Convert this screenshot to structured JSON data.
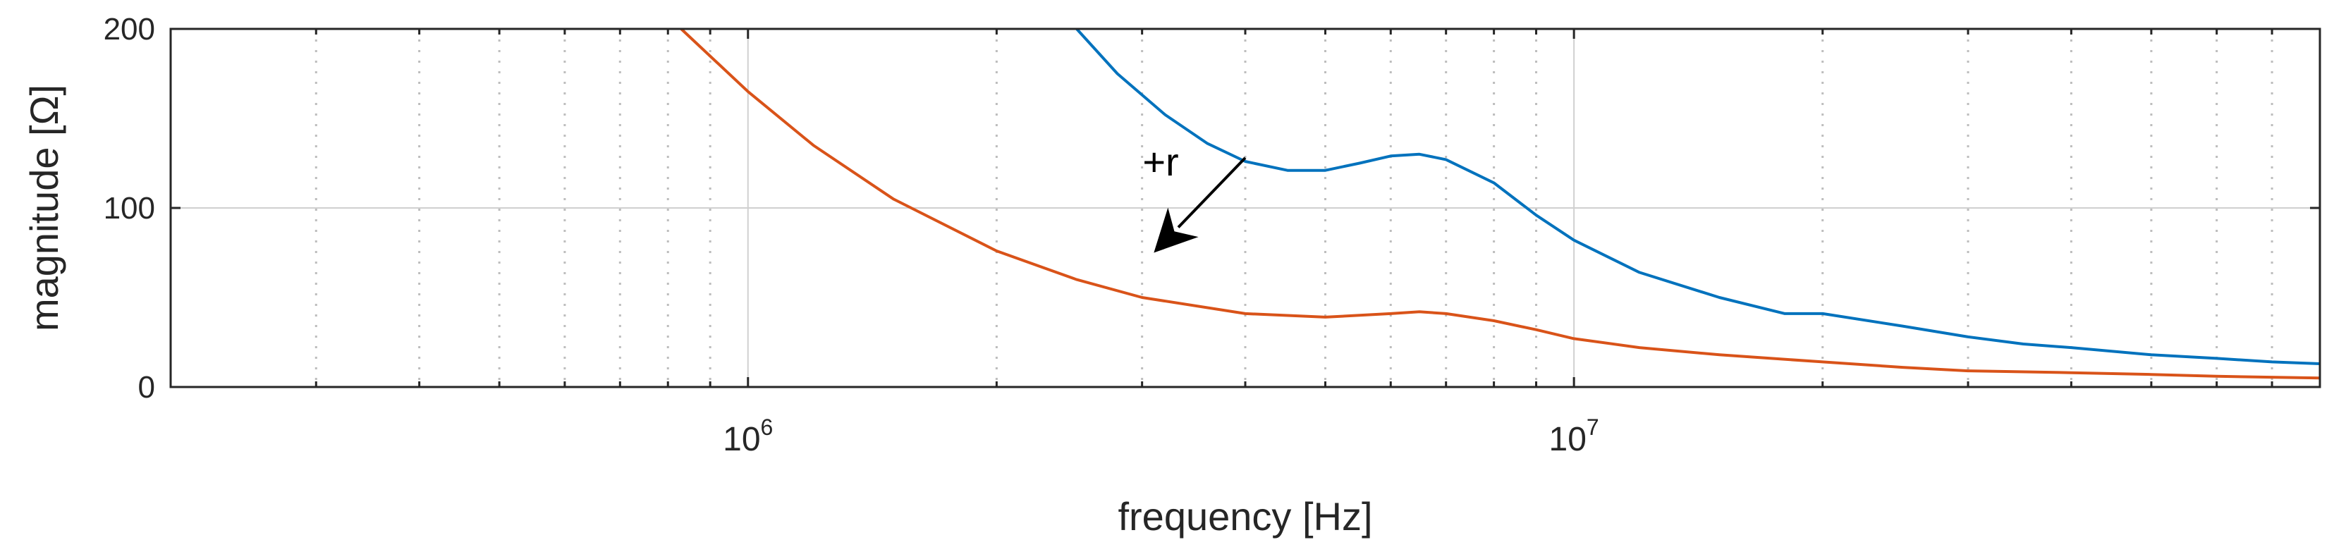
{
  "chart_data": {
    "type": "line",
    "title": "",
    "xlabel": "frequency [Hz]",
    "ylabel": "magnitude [Ω]",
    "x_scale": "log",
    "xlim": [
      200000,
      80000000
    ],
    "ylim": [
      0,
      200
    ],
    "grid": true,
    "legend": "none",
    "x_tick_labels": [
      {
        "value": 1000000,
        "base": "10",
        "exp": "6"
      },
      {
        "value": 10000000,
        "base": "10",
        "exp": "7"
      }
    ],
    "y_tick_labels": [
      "0",
      "100",
      "200"
    ],
    "y_ticks": [
      0,
      100,
      200
    ],
    "annotation": {
      "text": "+r",
      "arrow_from": [
        4000000,
        128
      ],
      "arrow_to": [
        3100000,
        75
      ]
    },
    "colors": {
      "series1": "#0072BD",
      "series2": "#D95319",
      "grid": "#d0d0d0",
      "axis": "#262626"
    },
    "series": [
      {
        "color": "#0072BD",
        "x": [
          2500000,
          2800000,
          3200000,
          3600000,
          4000000,
          4500000,
          5000000,
          5500000,
          6000000,
          6500000,
          7000000,
          8000000,
          9000000,
          10000000,
          12000000,
          15000000,
          18000000,
          20000000,
          25000000,
          30000000,
          35000000,
          40000000,
          50000000,
          60000000,
          70000000,
          80000000
        ],
        "y": [
          200,
          175,
          152,
          136,
          126,
          121,
          121,
          125,
          129,
          130,
          127,
          114,
          96,
          82,
          64,
          50,
          41,
          41,
          34,
          28,
          24,
          22,
          18,
          16,
          14,
          13
        ]
      },
      {
        "color": "#D95319",
        "x": [
          830000,
          1000000,
          1200000,
          1500000,
          2000000,
          2500000,
          3000000,
          4000000,
          5000000,
          6000000,
          6500000,
          7000000,
          8000000,
          9000000,
          10000000,
          12000000,
          15000000,
          20000000,
          25000000,
          30000000,
          40000000,
          50000000,
          60000000,
          80000000
        ],
        "y": [
          200,
          165,
          135,
          105,
          76,
          60,
          50,
          41,
          39,
          41,
          42,
          41,
          37,
          32,
          27,
          22,
          18,
          14,
          11,
          9,
          8,
          7,
          6,
          5
        ]
      }
    ]
  }
}
